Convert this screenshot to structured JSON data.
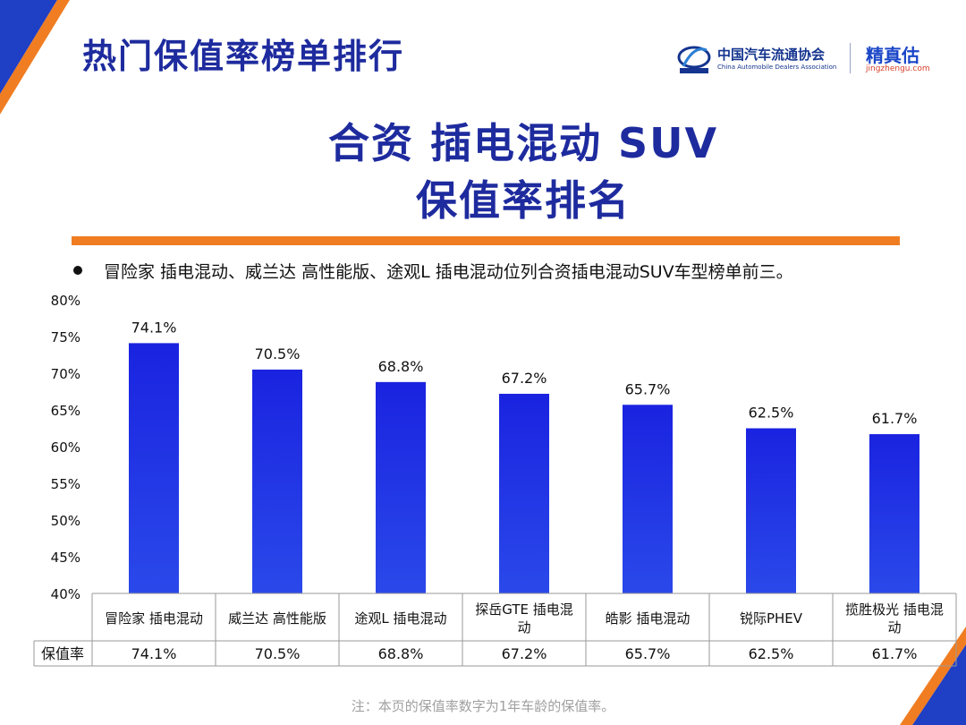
{
  "header": {
    "title": "热门保值率榜单排行",
    "logo_cn": "中国汽车流通协会",
    "logo_en": "China Automobile Dealers Association",
    "brand_name": "精真估",
    "brand_url": "jingzhengu.com"
  },
  "main_title_line1": "合资 插电混动 SUV",
  "main_title_line2": "保值率排名",
  "bullet": "冒险家 插电混动、威兰达 高性能版、途观L 插电混动位列合资插电混动SUV车型榜单前三。",
  "footnote": "注：本页的保值率数字为1年车龄的保值率。",
  "colors": {
    "title_blue": "#1e2b9e",
    "bar_top": "#1a23e0",
    "bar_bottom": "#2a49ea",
    "accent_orange": "#f07d22"
  },
  "chart_data": {
    "type": "bar",
    "categories": [
      "冒险家 插电混动",
      "威兰达 高性能版",
      "途观L 插电混动",
      "探岳GTE 插电混动",
      "皓影 插电混动",
      "锐际PHEV",
      "揽胜极光 插电混动"
    ],
    "values": [
      74.1,
      70.5,
      68.8,
      67.2,
      65.7,
      62.5,
      61.7
    ],
    "data_labels": [
      "74.1%",
      "70.5%",
      "68.8%",
      "67.2%",
      "65.7%",
      "62.5%",
      "61.7%"
    ],
    "ylim": [
      40,
      80
    ],
    "yticks": [
      "80%",
      "75%",
      "70%",
      "65%",
      "60%",
      "55%",
      "50%",
      "45%",
      "40%"
    ],
    "grid": false,
    "table_row_label": "保值率",
    "table_values": [
      "74.1%",
      "70.5%",
      "68.8%",
      "67.2%",
      "65.7%",
      "62.5%",
      "61.7%"
    ]
  }
}
